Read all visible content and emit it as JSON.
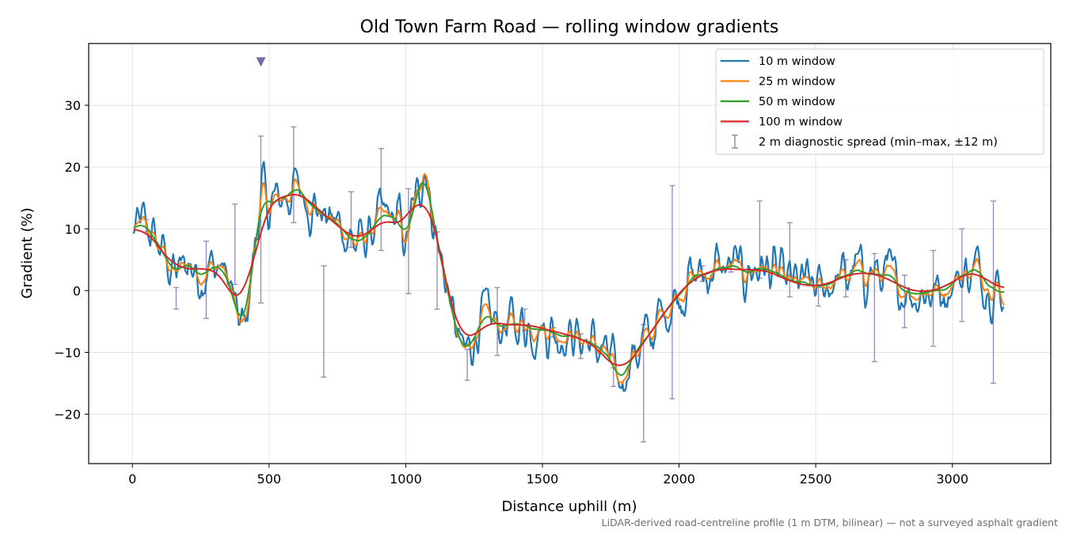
{
  "chart_data": {
    "type": "line",
    "title": "Old Town Farm Road — rolling window gradients",
    "xlabel": "Distance uphill (m)",
    "ylabel": "Gradient (%)",
    "xlim": [
      -160,
      3360
    ],
    "ylim": [
      -28,
      40
    ],
    "xticks": [
      0,
      500,
      1000,
      1500,
      2000,
      2500,
      3000
    ],
    "yticks": [
      -20,
      -10,
      0,
      10,
      20,
      30
    ],
    "xtick_labels": [
      "0",
      "500",
      "1000",
      "1500",
      "2000",
      "2500",
      "3000"
    ],
    "ytick_labels": [
      "−20",
      "−10",
      "0",
      "10",
      "20",
      "30"
    ],
    "grid": true,
    "legend_position": "upper-right",
    "footnote": "LiDAR-derived road-centreline profile (1 m DTM, bilinear) — not a surveyed asphalt gradient",
    "colors": {
      "10m": "#1f77b4",
      "25m": "#ff7f0e",
      "50m": "#2ca02c",
      "100m": "#d62728",
      "errorbar": "#9a90b8",
      "marker": "#7a6aa8"
    },
    "legend": [
      {
        "key": "10m",
        "label": "10 m window"
      },
      {
        "key": "25m",
        "label": "25 m window"
      },
      {
        "key": "50m",
        "label": "50 m window"
      },
      {
        "key": "100m",
        "label": "100 m window"
      },
      {
        "key": "errorbar",
        "label": "2 m diagnostic spread (min–max, ±12 m)"
      }
    ],
    "profile_anchors": {
      "x": [
        5,
        40,
        60,
        90,
        130,
        160,
        200,
        240,
        280,
        320,
        350,
        380,
        400,
        420,
        440,
        460,
        480,
        500,
        540,
        580,
        620,
        660,
        700,
        740,
        780,
        820,
        860,
        900,
        940,
        980,
        1000,
        1040,
        1070,
        1100,
        1140,
        1180,
        1210,
        1240,
        1280,
        1320,
        1360,
        1400,
        1450,
        1500,
        1550,
        1600,
        1650,
        1700,
        1740,
        1780,
        1820,
        1860,
        1900,
        1950,
        2000,
        2050,
        2100,
        2150,
        2200,
        2250,
        2300,
        2350,
        2400,
        2450,
        2500,
        2550,
        2600,
        2650,
        2700,
        2750,
        2800,
        2850,
        2900,
        2950,
        3000,
        3050,
        3100,
        3150,
        3190
      ],
      "y": [
        9,
        10.5,
        10,
        7.5,
        5,
        2,
        5,
        3,
        3.5,
        4,
        2,
        -4,
        -7,
        -3,
        4,
        12,
        16,
        13,
        15,
        16,
        16.5,
        14,
        12,
        11,
        10,
        7,
        9,
        11,
        12,
        11,
        7,
        15,
        22,
        11,
        3,
        -6,
        -11,
        -8,
        -5,
        -5,
        -6,
        -5.5,
        -5,
        -6,
        -6.5,
        -7,
        -8,
        -9,
        -11,
        -15,
        -11,
        -9,
        -7,
        -3,
        0,
        2,
        3,
        3.5,
        3.5,
        3,
        4,
        2.5,
        1,
        1,
        0,
        1.5,
        2,
        3,
        3,
        2,
        1,
        0,
        0,
        0,
        1.5,
        3,
        3.5,
        1,
        -1
      ]
    },
    "window_jitter_pct": {
      "10m": 2.8,
      "25m": 1.5,
      "50m": 0.8,
      "100m": 0.35
    },
    "window_smoothing_m": {
      "10m": 3,
      "25m": 9,
      "50m": 22,
      "100m": 55
    },
    "highlight_marker": {
      "x": 470,
      "y": 37
    },
    "error_bars": [
      {
        "x": 50,
        "low": 9.5,
        "high": 11.5
      },
      {
        "x": 160,
        "low": -3,
        "high": 0.5
      },
      {
        "x": 270,
        "low": -4.5,
        "high": 8
      },
      {
        "x": 375,
        "low": 1,
        "high": 14
      },
      {
        "x": 470,
        "low": -2,
        "high": 25
      },
      {
        "x": 590,
        "low": 11,
        "high": 26.5
      },
      {
        "x": 700,
        "low": -14,
        "high": 4
      },
      {
        "x": 800,
        "low": 7,
        "high": 16
      },
      {
        "x": 910,
        "low": 6.5,
        "high": 23
      },
      {
        "x": 1010,
        "low": -0.5,
        "high": 16.5
      },
      {
        "x": 1115,
        "low": -3,
        "high": 9.5
      },
      {
        "x": 1225,
        "low": -14.5,
        "high": -9.5
      },
      {
        "x": 1335,
        "low": -10.5,
        "high": 0.5
      },
      {
        "x": 1435,
        "low": -6.5,
        "high": -3
      },
      {
        "x": 1540,
        "low": -7.5,
        "high": -6
      },
      {
        "x": 1640,
        "low": -11,
        "high": -7
      },
      {
        "x": 1760,
        "low": -15.5,
        "high": -12.5
      },
      {
        "x": 1870,
        "low": -24.5,
        "high": -5.5
      },
      {
        "x": 1975,
        "low": -17.5,
        "high": 17
      },
      {
        "x": 2085,
        "low": 1.5,
        "high": 4
      },
      {
        "x": 2190,
        "low": 3,
        "high": 4.5
      },
      {
        "x": 2295,
        "low": 2,
        "high": 14.5
      },
      {
        "x": 2405,
        "low": -1,
        "high": 11
      },
      {
        "x": 2510,
        "low": -2.5,
        "high": 0.5
      },
      {
        "x": 2610,
        "low": -1,
        "high": 5
      },
      {
        "x": 2715,
        "low": -11.5,
        "high": 6
      },
      {
        "x": 2825,
        "low": -6,
        "high": 2.5
      },
      {
        "x": 2930,
        "low": -9,
        "high": 6.5
      },
      {
        "x": 3035,
        "low": -5,
        "high": 10
      },
      {
        "x": 3150,
        "low": -15,
        "high": 14.5
      }
    ]
  }
}
